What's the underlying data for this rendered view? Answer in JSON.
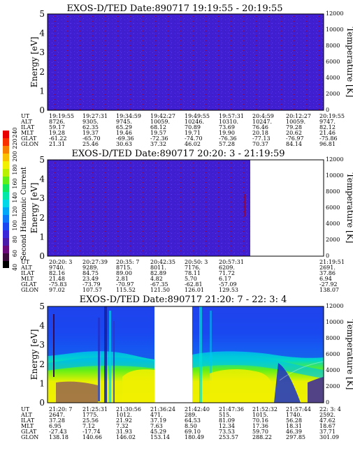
{
  "colors": {
    "background_blue": "#3f1fd0",
    "blue_speck": "#5230e8",
    "red_speck": "#c00018",
    "axis": "#000000",
    "palette": [
      "#000000",
      "#3a0a3a",
      "#6a0a7a",
      "#4a1aa8",
      "#3a28d8",
      "#1a48f0",
      "#0a78f8",
      "#00a8f8",
      "#00d8e8",
      "#00e8a8",
      "#10e860",
      "#60f018",
      "#b8f000",
      "#f0f000",
      "#f8c000",
      "#f88000",
      "#f83000",
      "#e80000"
    ]
  },
  "colorbar": {
    "label": "Second Harmonic Current",
    "ticks": [
      "40",
      "60",
      "80",
      "100",
      "120",
      "140",
      "160",
      "180",
      "200",
      "220",
      "240"
    ]
  },
  "panels": [
    {
      "title": "EXOS-D/TED   Date:890717  19:19:55 - 20:19:55",
      "ylabel": "Energy [eV]",
      "y2label": "Temperature [K]",
      "yticks": [
        "0",
        "1",
        "2",
        "3",
        "4",
        "5"
      ],
      "y2ticks": [
        "0",
        "2000",
        "4000",
        "6000",
        "8000",
        "10000",
        "12000"
      ],
      "orbit_labels": [
        "UT",
        "ALT",
        "ILAT",
        "MLT",
        "GLAT",
        "GLON"
      ],
      "orbit_columns": [
        [
          "19:19:55",
          "8726.",
          "59.17",
          "19.28",
          "-61.22",
          "21.31"
        ],
        [
          "19:27:31",
          "9305.",
          "62.35",
          "19.37",
          "-65.70",
          "25.46"
        ],
        [
          "19:34:59",
          "9745.",
          "65.29",
          "19.46",
          "-69.36",
          "30.63"
        ],
        [
          "19:42:27",
          "10059.",
          "68.12",
          "19.57",
          "-72.36",
          "37.32"
        ],
        [
          "19:49:55",
          "10246.",
          "70.89",
          "19.71",
          "-74.70",
          "46.02"
        ],
        [
          "19:57:31",
          "10310.",
          "73.69",
          "19.90",
          "-76.36",
          "57.28"
        ],
        [
          "20:4:59",
          "10247.",
          "76.46",
          "20.18",
          "-77.13",
          "70.37"
        ],
        [
          "20:12:27",
          "10059.",
          "79.28",
          "20.62",
          "-76.97",
          "84.14"
        ],
        [
          "20:19:55",
          "9747.",
          "82.12",
          "21.46",
          "-75.86",
          "96.81"
        ]
      ]
    },
    {
      "title": "EXOS-D/TED   Date:890717  20:20: 3 - 21:19:59",
      "ylabel": "Energy [eV]",
      "y2label": "Temperature [K]",
      "yticks": [
        "0",
        "1",
        "2",
        "3",
        "4",
        "5"
      ],
      "y2ticks": [
        "0",
        "2000",
        "4000",
        "6000",
        "8000",
        "10000",
        "12000"
      ],
      "orbit_labels": [
        "UT",
        "ALT",
        "ILAT",
        "MLT",
        "GLAT",
        "GLON"
      ],
      "orbit_columns": [
        [
          "20:20: 3",
          "9740.",
          "82.16",
          "21.48",
          "-75.83",
          "97.02"
        ],
        [
          "20:27:39",
          "9289.",
          "84.75",
          "23.49",
          "-73.79",
          "107.57"
        ],
        [
          "20:35: 7",
          "8715.",
          "89.00",
          "2.81",
          "-70.97",
          "115.52"
        ],
        [
          "20:42:35",
          "8011.",
          "82.89",
          "4.82",
          "-67.35",
          "121.50"
        ],
        [
          "20:50: 3",
          "7176.",
          "78.11",
          "5.70",
          "-62.81",
          "126.01"
        ],
        [
          "20:57:31",
          "6209.",
          "71.72",
          "6.17",
          "-57.09",
          "129.53"
        ],
        [
          "21:19:51",
          "2691.",
          "37.86",
          "6.94",
          "-27.92",
          "138.07"
        ]
      ]
    },
    {
      "title": "EXOS-D/TED   Date:890717  21:20: 7 - 22: 3: 4",
      "ylabel": "Energy [eV]",
      "y2label": "Temperature [K]",
      "yticks": [
        "0",
        "1",
        "2",
        "3",
        "4",
        "5"
      ],
      "y2ticks": [
        "0",
        "2000",
        "4000",
        "6000",
        "8000",
        "10000",
        "12000"
      ],
      "orbit_labels": [
        "UT",
        "ALT",
        "ILAT",
        "MLT",
        "GLAT",
        "GLON"
      ],
      "orbit_columns": [
        [
          "21:20: 7",
          "2647.",
          "37.28",
          "6.95",
          "-27.43",
          "138.18"
        ],
        [
          "21:25:31",
          "1775.",
          "25.56",
          "7.12",
          "-17.74",
          "140.66"
        ],
        [
          "21:30:56",
          "1012.",
          "21.92",
          "7.32",
          "31.93",
          "146.02"
        ],
        [
          "21:36:24",
          "471.",
          "37.19",
          "7.63",
          "45.29",
          "153.14"
        ],
        [
          "21:42:40",
          "289.",
          "64.53",
          "8.50",
          "69.10",
          "180.49"
        ],
        [
          "21:47:36",
          "515.",
          "81.09",
          "12.34",
          "73.53",
          "253.57"
        ],
        [
          "21:52:32",
          "1015.",
          "70.16",
          "17.36",
          "59.70",
          "288.22"
        ],
        [
          "21:57:44",
          "1740.",
          "56.28",
          "18.31",
          "46.39",
          "297.85"
        ],
        [
          "22: 3: 4",
          "2592.",
          "47.62",
          "18.67",
          "37.71",
          "301.09"
        ]
      ]
    }
  ],
  "chart_data": [
    {
      "type": "heatmap",
      "title": "EXOS-D/TED   Date:890717  19:19:55 - 20:19:55",
      "ylabel": "Energy [eV]",
      "y2label": "Temperature [K]",
      "ylim": [
        0,
        5
      ],
      "y2lim": [
        0,
        12000
      ],
      "x_start": "19:19:55",
      "x_end": "20:19:55",
      "data_coverage": [
        [
          "19:19:55",
          "20:19:55"
        ]
      ],
      "fill_level": 0.4
    },
    {
      "type": "heatmap",
      "title": "EXOS-D/TED   Date:890717  20:20: 3 - 21:19:59",
      "ylabel": "Energy [eV]",
      "y2label": "Temperature [K]",
      "ylim": [
        0,
        5
      ],
      "y2lim": [
        0,
        12000
      ],
      "x_start": "20:20: 3",
      "x_end": "21:19:59",
      "data_coverage": [
        [
          "20:20: 3",
          "21:00:00"
        ]
      ],
      "fill_level": 0.4
    },
    {
      "type": "heatmap",
      "title": "EXOS-D/TED   Date:890717  21:20: 7 - 22: 3: 4",
      "ylabel": "Energy [eV]",
      "y2label": "Temperature [K]",
      "ylim": [
        0,
        5
      ],
      "y2lim": [
        0,
        12000
      ],
      "x_start": "21:20: 7",
      "x_end": "22: 3: 4",
      "data_coverage": [
        [
          "21:20: 7",
          "21:36:24"
        ],
        [
          "21:42:40",
          "22: 3: 4"
        ]
      ],
      "fill_level": 0.5
    }
  ]
}
